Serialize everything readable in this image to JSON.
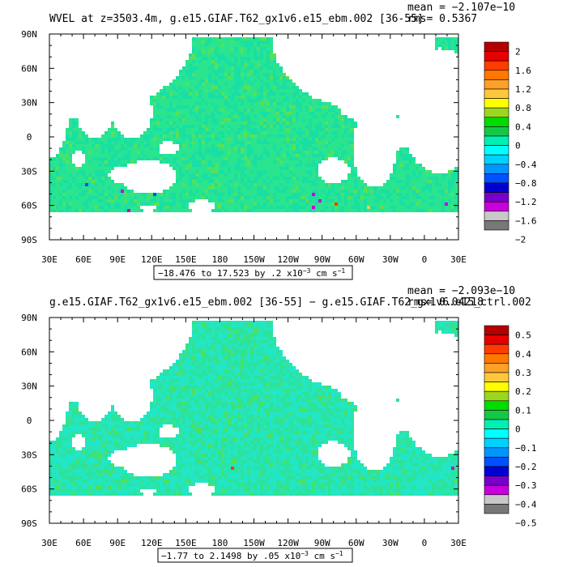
{
  "chart_data": [
    {
      "type": "heatmap",
      "title": "WVEL at z=3503.4m, g.e15.GIAF.T62_gx1v6.e15_ebm.002 [36-55]",
      "mean_text": "mean = −2.107e−10",
      "rms_text": "rms= 0.5367",
      "range_text": "−18.476 to 17.523 by .2 x10",
      "range_exp": "−3",
      "range_units": " cm s",
      "range_units_exp": "−1",
      "xlim": [
        30,
        390
      ],
      "ylim": [
        -90,
        90
      ],
      "x_ticks": [
        "30E",
        "60E",
        "90E",
        "120E",
        "150E",
        "180",
        "150W",
        "120W",
        "90W",
        "60W",
        "30W",
        "0",
        "30E"
      ],
      "y_ticks": [
        "90N",
        "60N",
        "30N",
        "0",
        "30S",
        "60S",
        "90S"
      ],
      "colorbar_labels": [
        "2",
        "1.6",
        "1.2",
        "0.8",
        "0.4",
        "0",
        "−0.4",
        "−0.8",
        "−1.2",
        "−1.6",
        "−2"
      ],
      "colorbar_colors": [
        "#b40000",
        "#e60000",
        "#ff3c00",
        "#ff7800",
        "#ffa028",
        "#ffc83c",
        "#ffff00",
        "#9bd71e",
        "#00dc00",
        "#14c846",
        "#00f0b4",
        "#00ffff",
        "#00d2ff",
        "#0096ff",
        "#0050ff",
        "#0000d2",
        "#7800c8",
        "#c800dc",
        "#c8c8c8",
        "#787878"
      ]
    },
    {
      "type": "heatmap",
      "title": "g.e15.GIAF.T62_gx1v6.e15_ebm.002 [36-55] − g.e15.GIAF.T62_gx1v6.e15_ctrl.002",
      "mean_text": "mean = −2.093e−10",
      "rms_text": "rms= 0.04218",
      "range_text": "−1.77 to 2.1498 by .05 x10",
      "range_exp": "−3",
      "range_units": " cm s",
      "range_units_exp": "−1",
      "xlim": [
        30,
        390
      ],
      "ylim": [
        -90,
        90
      ],
      "x_ticks": [
        "30E",
        "60E",
        "90E",
        "120E",
        "150E",
        "180",
        "150W",
        "120W",
        "90W",
        "60W",
        "30W",
        "0",
        "30E"
      ],
      "y_ticks": [
        "90N",
        "60N",
        "30N",
        "0",
        "30S",
        "60S",
        "90S"
      ],
      "colorbar_labels": [
        "0.5",
        "0.4",
        "0.3",
        "0.2",
        "0.1",
        "0",
        "−0.1",
        "−0.2",
        "−0.3",
        "−0.4",
        "−0.5"
      ],
      "colorbar_colors": [
        "#b40000",
        "#e60000",
        "#ff3c00",
        "#ff7800",
        "#ffa028",
        "#ffc83c",
        "#ffff00",
        "#9bd71e",
        "#00dc00",
        "#14c846",
        "#00f0b4",
        "#00ffff",
        "#00d2ff",
        "#0096ff",
        "#0050ff",
        "#0000d2",
        "#7800c8",
        "#c800dc",
        "#c8c8c8",
        "#787878"
      ]
    }
  ],
  "colors": {
    "field_dominant_top": "#19e07a",
    "field_dominant_bottom": "#22e3c8",
    "field_accent": "#52e05a",
    "land": "#ffffff"
  }
}
